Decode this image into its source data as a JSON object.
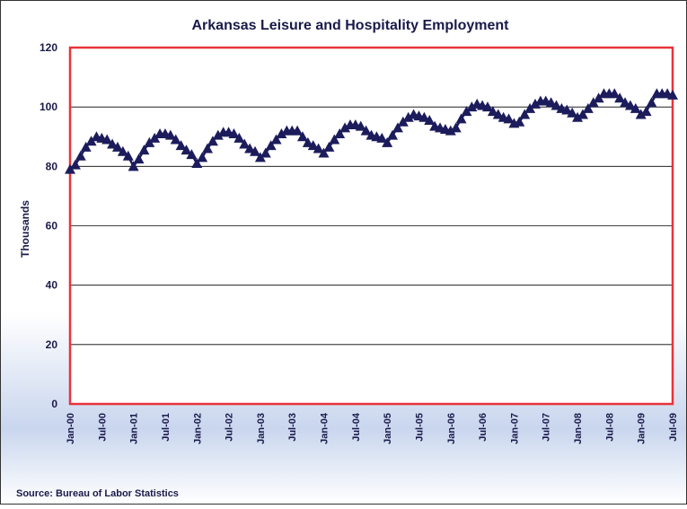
{
  "chart_data": {
    "type": "line",
    "title": "Arkansas Leisure and Hospitality Employment",
    "y_label": "Thousands",
    "source": "Source: Bureau of Labor Statistics",
    "categories": [
      "Jan-00",
      null,
      null,
      null,
      null,
      null,
      "Jul-00",
      null,
      null,
      null,
      null,
      null,
      "Jan-01",
      null,
      null,
      null,
      null,
      null,
      "Jul-01",
      null,
      null,
      null,
      null,
      null,
      "Jan-02",
      null,
      null,
      null,
      null,
      null,
      "Jul-02",
      null,
      null,
      null,
      null,
      null,
      "Jan-03",
      null,
      null,
      null,
      null,
      null,
      "Jul-03",
      null,
      null,
      null,
      null,
      null,
      "Jan-04",
      null,
      null,
      null,
      null,
      null,
      "Jul-04",
      null,
      null,
      null,
      null,
      null,
      "Jan-05",
      null,
      null,
      null,
      null,
      null,
      "Jul-05",
      null,
      null,
      null,
      null,
      null,
      "Jan-06",
      null,
      null,
      null,
      null,
      null,
      "Jul-06",
      null,
      null,
      null,
      null,
      null,
      "Jan-07",
      null,
      null,
      null,
      null,
      null,
      "Jul-07",
      null,
      null,
      null,
      null,
      null,
      "Jan-08",
      null,
      null,
      null,
      null,
      null,
      "Jul-08",
      null,
      null,
      null,
      null,
      null,
      "Jan-09",
      null,
      null,
      null,
      null,
      null,
      "Jul-09"
    ],
    "series": [
      {
        "name": "Leisure and Hospitality",
        "color": "#1c1c5c",
        "values": [
          79,
          80.5,
          83.5,
          86.5,
          88.5,
          90,
          89.5,
          89,
          87.5,
          86.5,
          85,
          83.5,
          80,
          82.5,
          85.5,
          88,
          89.5,
          91,
          91,
          90.5,
          89,
          87,
          85.5,
          84,
          81,
          83,
          86,
          88.5,
          90.5,
          91.5,
          91.5,
          91,
          89.5,
          87.5,
          86,
          85,
          83,
          84.5,
          87,
          89,
          91,
          92,
          92,
          92,
          90,
          88,
          87,
          86,
          84.5,
          86.5,
          89,
          91,
          93,
          94,
          94,
          93.5,
          92,
          90.5,
          90,
          89.5,
          88,
          90.5,
          93,
          95,
          96.5,
          97.5,
          97,
          96.5,
          95.5,
          93.5,
          93,
          92.5,
          92,
          93,
          96,
          98.5,
          100,
          101,
          100.5,
          100,
          98.5,
          97.5,
          96.5,
          96,
          94.5,
          95,
          97.5,
          99.5,
          101,
          102,
          102,
          101.5,
          100.5,
          99.5,
          99,
          98,
          96.5,
          97.5,
          99.5,
          101.5,
          103,
          104.5,
          104.5,
          104.5,
          103,
          101.5,
          100.5,
          99.5,
          97.5,
          98.5,
          101.5,
          104.5,
          104.5,
          104.5,
          104
        ]
      }
    ],
    "ylim": [
      0,
      120
    ],
    "yticks": [
      0,
      20,
      40,
      60,
      80,
      100,
      120
    ],
    "grid": true,
    "frame_color": "#e8333a"
  }
}
